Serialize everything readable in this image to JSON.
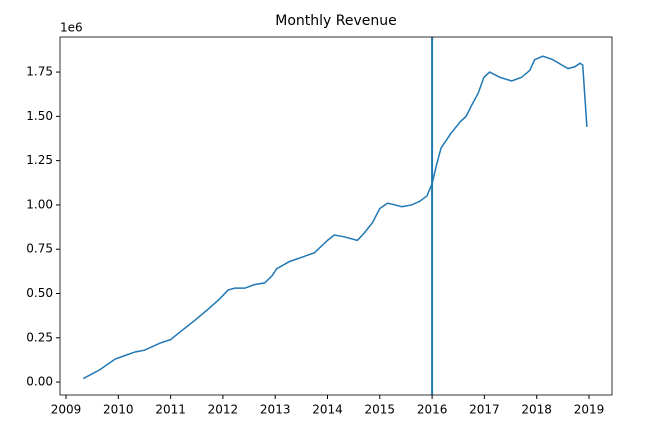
{
  "chart_data": {
    "type": "line",
    "title": "Monthly Revenue",
    "y_offset_label": "1e6",
    "x": [
      2009.33,
      2009.65,
      2009.94,
      2010.13,
      2010.32,
      2010.5,
      2010.8,
      2011.0,
      2011.17,
      2011.47,
      2011.75,
      2011.94,
      2012.1,
      2012.23,
      2012.42,
      2012.6,
      2012.8,
      2012.94,
      2013.03,
      2013.27,
      2013.56,
      2013.75,
      2014.0,
      2014.13,
      2014.32,
      2014.57,
      2014.7,
      2014.86,
      2015.0,
      2015.15,
      2015.29,
      2015.42,
      2015.61,
      2015.76,
      2015.9,
      2016.0,
      2016.08,
      2016.17,
      2016.35,
      2016.54,
      2016.65,
      2016.77,
      2016.88,
      2016.99,
      2017.1,
      2017.3,
      2017.52,
      2017.71,
      2017.87,
      2017.96,
      2018.12,
      2018.31,
      2018.48,
      2018.6,
      2018.73,
      2018.83,
      2018.88,
      2018.96
    ],
    "series": [
      {
        "color": "#1f77b4",
        "values": [
          0.02,
          0.07,
          0.13,
          0.15,
          0.17,
          0.18,
          0.22,
          0.24,
          0.28,
          0.35,
          0.42,
          0.47,
          0.52,
          0.53,
          0.53,
          0.55,
          0.56,
          0.6,
          0.64,
          0.68,
          0.71,
          0.73,
          0.8,
          0.83,
          0.82,
          0.8,
          0.84,
          0.9,
          0.98,
          1.01,
          1.0,
          0.99,
          1.0,
          1.02,
          1.05,
          1.12,
          1.22,
          1.32,
          1.4,
          1.47,
          1.5,
          1.57,
          1.63,
          1.72,
          1.75,
          1.72,
          1.7,
          1.72,
          1.76,
          1.82,
          1.84,
          1.82,
          1.79,
          1.77,
          1.78,
          1.8,
          1.79,
          1.44
        ]
      }
    ],
    "vline": {
      "x": 2016,
      "color": "#1f77b4"
    },
    "xlim": [
      2008.885,
      2019.44
    ],
    "xticks": [
      2009,
      2010,
      2011,
      2012,
      2013,
      2014,
      2015,
      2016,
      2017,
      2018,
      2019
    ],
    "ylim": [
      -0.073,
      1.948
    ],
    "yticks": [
      {
        "value": 0,
        "label": "0.00"
      },
      0.25,
      {
        "value": 0.5,
        "label": "0.50"
      },
      0.75,
      {
        "value": 1,
        "label": "1.00"
      },
      1.25,
      {
        "value": 1.5,
        "label": "1.50"
      },
      1.75
    ]
  }
}
